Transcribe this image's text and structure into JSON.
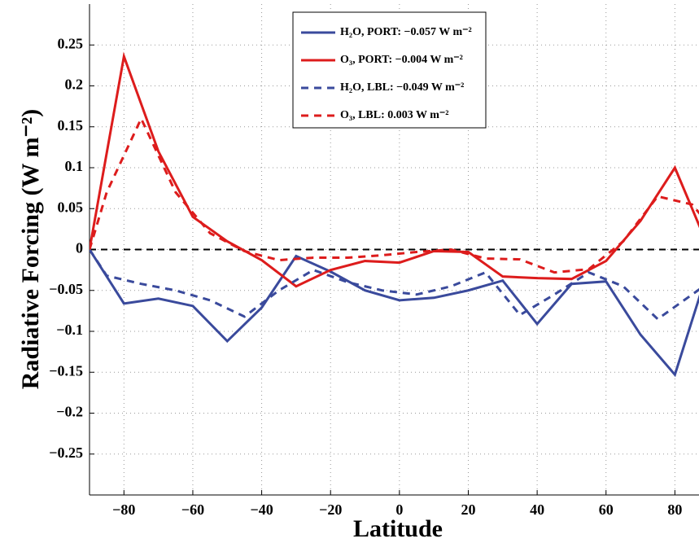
{
  "chart_data": {
    "type": "line",
    "xlabel": "Latitude",
    "ylabel": "Radiative Forcing (W m⁻²)",
    "xlim": [
      -90,
      87
    ],
    "ylim": [
      -0.3,
      0.3
    ],
    "xticks": [
      {
        "value": -80,
        "label": "−80"
      },
      {
        "value": -60,
        "label": "−60"
      },
      {
        "value": -40,
        "label": "−40"
      },
      {
        "value": -20,
        "label": "−20"
      },
      0,
      20,
      40,
      60,
      80
    ],
    "yticks": [
      {
        "value": -0.25,
        "label": "−0.25"
      },
      {
        "value": -0.2,
        "label": "−0.2"
      },
      {
        "value": -0.15,
        "label": "−0.15"
      },
      {
        "value": -0.1,
        "label": "−0.1"
      },
      {
        "value": -0.05,
        "label": "−0.05"
      },
      0,
      0.05,
      0.1,
      0.15,
      0.2,
      0.25
    ],
    "grid": true,
    "reference_line": {
      "value": 0,
      "color": "#000000"
    },
    "legend": "top-center",
    "series": [
      {
        "name": "H₂O, PORT: −0.057 W m⁻²",
        "color": "#3a4a9c",
        "dashed": false,
        "x": [
          -90,
          -80,
          -70,
          -60,
          -50,
          -40,
          -30,
          -20,
          -10,
          0,
          10,
          20,
          30,
          40,
          50,
          60,
          70,
          80,
          90
        ],
        "values": [
          0,
          -0.066,
          -0.06,
          -0.069,
          -0.112,
          -0.071,
          -0.008,
          -0.027,
          -0.05,
          -0.062,
          -0.059,
          -0.05,
          -0.038,
          -0.091,
          -0.042,
          -0.039,
          -0.104,
          -0.153,
          -0.02
        ]
      },
      {
        "name": "O₃, PORT: −0.004 W m⁻²",
        "color": "#dd1c1c",
        "dashed": false,
        "x": [
          -90,
          -80,
          -70,
          -60,
          -50,
          -40,
          -30,
          -20,
          -10,
          0,
          10,
          20,
          30,
          40,
          50,
          60,
          70,
          80,
          90
        ],
        "values": [
          0,
          0.236,
          0.12,
          0.04,
          0.01,
          -0.013,
          -0.045,
          -0.025,
          -0.014,
          -0.016,
          -0.002,
          -0.003,
          -0.033,
          -0.035,
          -0.036,
          -0.014,
          0.035,
          0.1,
          0
        ]
      },
      {
        "name": "H₂O, LBL: −0.049 W m⁻²",
        "color": "#3a4a9c",
        "dashed": true,
        "x": [
          -90,
          -85,
          -75,
          -65,
          -55,
          -45,
          -35,
          -25,
          -15,
          -5,
          5,
          15,
          25,
          35,
          45,
          55,
          65,
          75,
          85,
          90
        ],
        "values": [
          0,
          -0.032,
          -0.042,
          -0.05,
          -0.062,
          -0.082,
          -0.05,
          -0.025,
          -0.04,
          -0.05,
          -0.055,
          -0.045,
          -0.028,
          -0.08,
          -0.055,
          -0.028,
          -0.045,
          -0.085,
          -0.055,
          -0.04
        ]
      },
      {
        "name": "O₃, LBL: 0.003 W m⁻²",
        "color": "#dd1c1c",
        "dashed": true,
        "x": [
          -90,
          -85,
          -75,
          -65,
          -55,
          -45,
          -35,
          -25,
          -15,
          -5,
          5,
          15,
          25,
          35,
          45,
          55,
          65,
          75,
          85,
          90
        ],
        "values": [
          0,
          0.07,
          0.16,
          0.07,
          0.02,
          -0.002,
          -0.013,
          -0.01,
          -0.01,
          -0.007,
          -0.003,
          0,
          -0.011,
          -0.012,
          -0.028,
          -0.024,
          0.01,
          0.065,
          0.055,
          0.03
        ]
      }
    ]
  }
}
